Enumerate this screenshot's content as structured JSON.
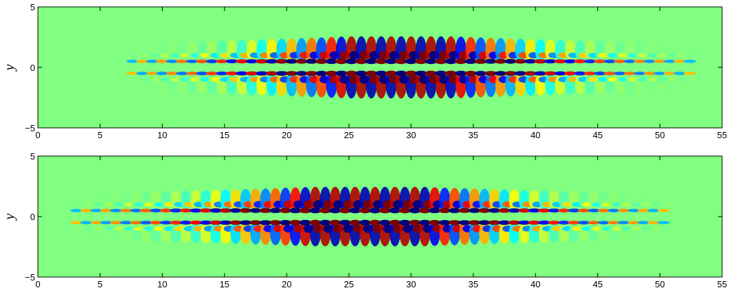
{
  "chart_data": [
    {
      "type": "heatmap",
      "title": "",
      "xlabel": "",
      "ylabel": "y",
      "xlim": [
        0,
        55
      ],
      "ylim": [
        -5,
        5
      ],
      "xticks": [
        "0",
        "5",
        "10",
        "15",
        "20",
        "25",
        "30",
        "35",
        "40",
        "45",
        "50",
        "55"
      ],
      "yticks": [
        "-5",
        "0",
        "5"
      ],
      "grid": false,
      "colormap": "jet",
      "background_color": "#80ff80",
      "wavepacket": {
        "x_start": 6,
        "x_end": 54,
        "x_center": 30,
        "peak_x_range": [
          25,
          33
        ],
        "core_rows_y": [
          -0.5,
          0.5
        ],
        "outer_lobe_y_extent": 2.3,
        "lobe_spacing_x": 1.6
      }
    },
    {
      "type": "heatmap",
      "title": "",
      "xlabel": "",
      "ylabel": "y",
      "xlim": [
        0,
        55
      ],
      "ylim": [
        -5,
        5
      ],
      "xticks": [
        "0",
        "5",
        "10",
        "15",
        "20",
        "25",
        "30",
        "35",
        "40",
        "45",
        "50",
        "55"
      ],
      "yticks": [
        "-5",
        "0",
        "5"
      ],
      "grid": false,
      "colormap": "jet",
      "background_color": "#80ff80",
      "wavepacket": {
        "x_start": 1.5,
        "x_end": 52,
        "x_center": 27,
        "peak_x_range": [
          22,
          31
        ],
        "core_rows_y": [
          -0.5,
          0.5
        ],
        "outer_lobe_y_extent": 2.2,
        "lobe_spacing_x": 1.6
      }
    }
  ]
}
